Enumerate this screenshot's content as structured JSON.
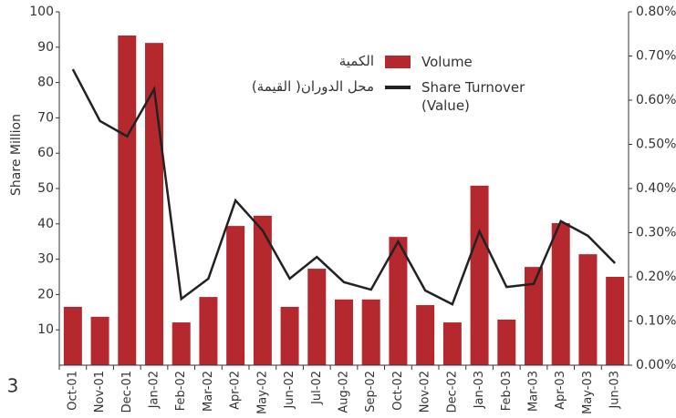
{
  "chart_data": {
    "type": "bar_line",
    "y_label": "Share Million",
    "page_number": "3",
    "categories": [
      "Oct-01",
      "Nov-01",
      "Dec-01",
      "Jan-02",
      "Feb-02",
      "Mar-02",
      "Apr-02",
      "May-02",
      "Jun-02",
      "Jul-02",
      "Aug-02",
      "Sep-02",
      "Oct-02",
      "Nov-02",
      "Dec-02",
      "Jan-03",
      "Feb-03",
      "Mar-03",
      "Apr-03",
      "May-03",
      "Jun-03"
    ],
    "series": [
      {
        "name": "Volume",
        "name_arabic": "الكمية",
        "type": "bar",
        "color": "#b5292e",
        "values": [
          16.5,
          13.7,
          93.3,
          91.2,
          12.1,
          19.3,
          39.4,
          42.3,
          16.5,
          27.3,
          18.6,
          18.6,
          36.3,
          17.0,
          12.1,
          50.8,
          12.9,
          27.8,
          40.2,
          31.4,
          25.0
        ]
      },
      {
        "name": "Share Turnover (Value)",
        "name_arabic": "محل الدوران( القيمة)",
        "type": "line",
        "color": "#222222",
        "axis": "y2",
        "values": [
          0.67,
          0.553,
          0.518,
          0.625,
          0.15,
          0.196,
          0.373,
          0.305,
          0.196,
          0.245,
          0.188,
          0.171,
          0.28,
          0.169,
          0.138,
          0.303,
          0.177,
          0.184,
          0.326,
          0.293,
          0.231
        ]
      }
    ],
    "ylim": [
      0,
      100
    ],
    "yticks": [
      10,
      20,
      30,
      40,
      50,
      60,
      70,
      80,
      90,
      100
    ],
    "y2lim": [
      0,
      0.8
    ],
    "y2ticks": [
      {
        "value": 0,
        "label": "0.00%"
      },
      {
        "value": 0.1,
        "label": "0.10%"
      },
      {
        "value": 0.2,
        "label": "0.20%"
      },
      {
        "value": 0.3,
        "label": "0.30%"
      },
      {
        "value": 0.4,
        "label": "0.40%"
      },
      {
        "value": 0.5,
        "label": "0.50%"
      },
      {
        "value": 0.6,
        "label": "0.60%"
      },
      {
        "value": 0.7,
        "label": "0.70%"
      },
      {
        "value": 0.8,
        "label": "0.80%"
      }
    ]
  }
}
